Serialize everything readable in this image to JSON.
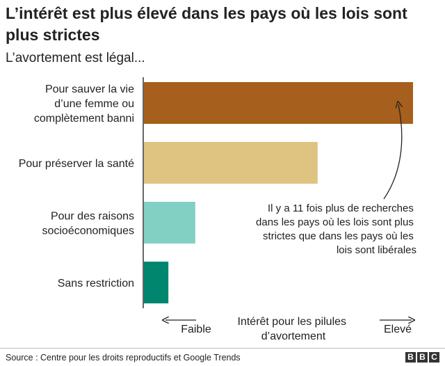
{
  "header": {
    "title": "L’intérêt est plus élevé dans les pays où les lois sont plus strictes",
    "subtitle": "L’avortement est légal..."
  },
  "chart_data": {
    "type": "bar",
    "orientation": "horizontal",
    "categories": [
      "Pour sauver la vie d’une femme ou complètement banni",
      "Pour préserver la santé",
      "Pour des raisons socioéconomiques",
      "Sans restriction"
    ],
    "category_lines": [
      [
        "Pour sauver la vie",
        "d’une femme ou",
        "complètement banni"
      ],
      [
        "Pour préserver la santé"
      ],
      [
        "Pour des raisons",
        "socioéconomiques"
      ],
      [
        "Sans restriction"
      ]
    ],
    "values": [
      11,
      7.1,
      2.1,
      1
    ],
    "colors": [
      "#a65f1c",
      "#dfc381",
      "#82d0c3",
      "#00866f"
    ],
    "axis_low_label": "Faible",
    "axis_high_label": "Elevé",
    "axis_title_lines": [
      "Intérêt pour les pilules",
      "d’avortement"
    ],
    "annotation_lines": [
      "Il y a 11 fois plus de recherches",
      "dans les pays où les lois sont plus",
      "strictes que dans les pays où les",
      "lois sont libérales"
    ],
    "xlim": [
      0,
      11
    ],
    "grid": false,
    "legend": "none"
  },
  "footer": {
    "source": "Source : Centre pour les droits reproductifs et Google Trends",
    "logo_letters": [
      "B",
      "B",
      "C"
    ]
  }
}
